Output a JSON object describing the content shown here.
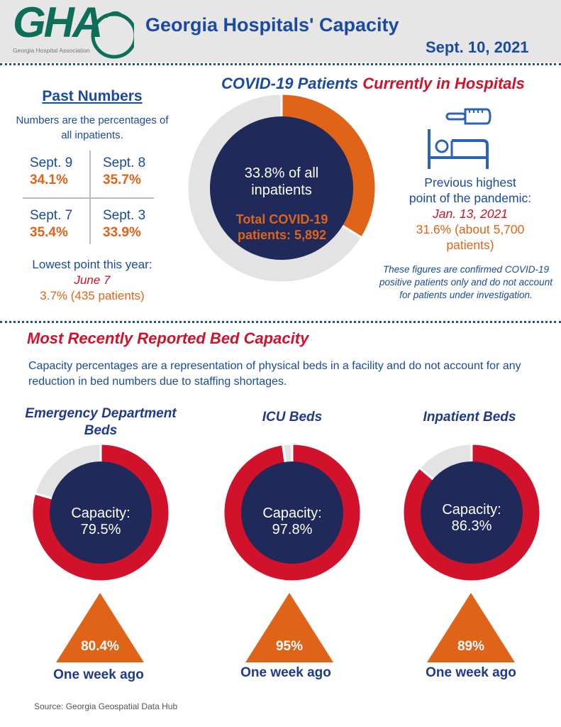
{
  "header": {
    "logo_text": "GHA",
    "logo_subtext": "Georgia Hospital Association",
    "title": "Georgia Hospitals' Capacity",
    "date": "Sept. 10, 2021"
  },
  "past": {
    "title": "Past Numbers",
    "note": "Numbers are the percentages of all inpatients.",
    "items": [
      {
        "label": "Sept. 9",
        "value": "34.1%"
      },
      {
        "label": "Sept. 8",
        "value": "35.7%"
      },
      {
        "label": "Sept. 7",
        "value": "35.4%"
      },
      {
        "label": "Sept. 3",
        "value": "33.9%"
      }
    ],
    "lowest_label": "Lowest point this year:",
    "lowest_date": "June 7",
    "lowest_value": "3.7% (435 patients)"
  },
  "covid": {
    "title_part1": "COVID-19 Patients",
    "title_part2": "Currently in Hospitals",
    "center_line1": "33.8% of all",
    "center_line2": "inpatients",
    "total_line1": "Total COVID-19",
    "total_line2": "patients: 5,892",
    "previous_label1": "Previous highest",
    "previous_label2": "point of the pandemic:",
    "previous_date": "Jan. 13, 2021",
    "previous_value1": "31.6% (about 5,700",
    "previous_value2": "patients)",
    "disclaimer": "These figures are confirmed COVID-19 positive patients only and do not account for patients under investigation.",
    "icons": [
      "thermometer-icon",
      "hospital-bed-icon"
    ]
  },
  "beds": {
    "title": "Most Recently Reported Bed Capacity",
    "note": "Capacity percentages are a representation of physical beds in a facility and do not account for any reduction in bed numbers due to staffing shortages.",
    "items": [
      {
        "title": "Emergency Department Beds",
        "cap_label": "Capacity:",
        "cap_value": "79.5%",
        "week_value": "80.4%",
        "week_label": "One week ago"
      },
      {
        "title": "ICU Beds",
        "cap_label": "Capacity:",
        "cap_value": "97.8%",
        "week_value": "95%",
        "week_label": "One week ago"
      },
      {
        "title": "Inpatient Beds",
        "cap_label": "Capacity:",
        "cap_value": "86.3%",
        "week_value": "89%",
        "week_label": "One week ago"
      }
    ]
  },
  "source": "Source: Georgia Geospatial Data Hub",
  "colors": {
    "navy": "#1f2a5a",
    "blue": "#1a4ba0",
    "red": "#d0122b",
    "orange": "#e06418",
    "gray": "#e3e3e3",
    "logo_green": "#0d6e5a"
  },
  "chart_data": [
    {
      "type": "pie",
      "subtype": "donut",
      "name": "covid",
      "values": [
        33.8,
        66.2
      ],
      "colors": [
        "#e06418",
        "#e3e3e3"
      ]
    },
    {
      "type": "pie",
      "subtype": "donut",
      "name": "ed",
      "values": [
        79.5,
        20.5
      ],
      "colors": [
        "#d0122b",
        "#e3e3e3"
      ]
    },
    {
      "type": "pie",
      "subtype": "donut",
      "name": "icu",
      "values": [
        97.8,
        2.2
      ],
      "colors": [
        "#d0122b",
        "#e3e3e3"
      ]
    },
    {
      "type": "pie",
      "subtype": "donut",
      "name": "inpatient",
      "values": [
        86.3,
        13.7
      ],
      "colors": [
        "#d0122b",
        "#e3e3e3"
      ]
    }
  ]
}
